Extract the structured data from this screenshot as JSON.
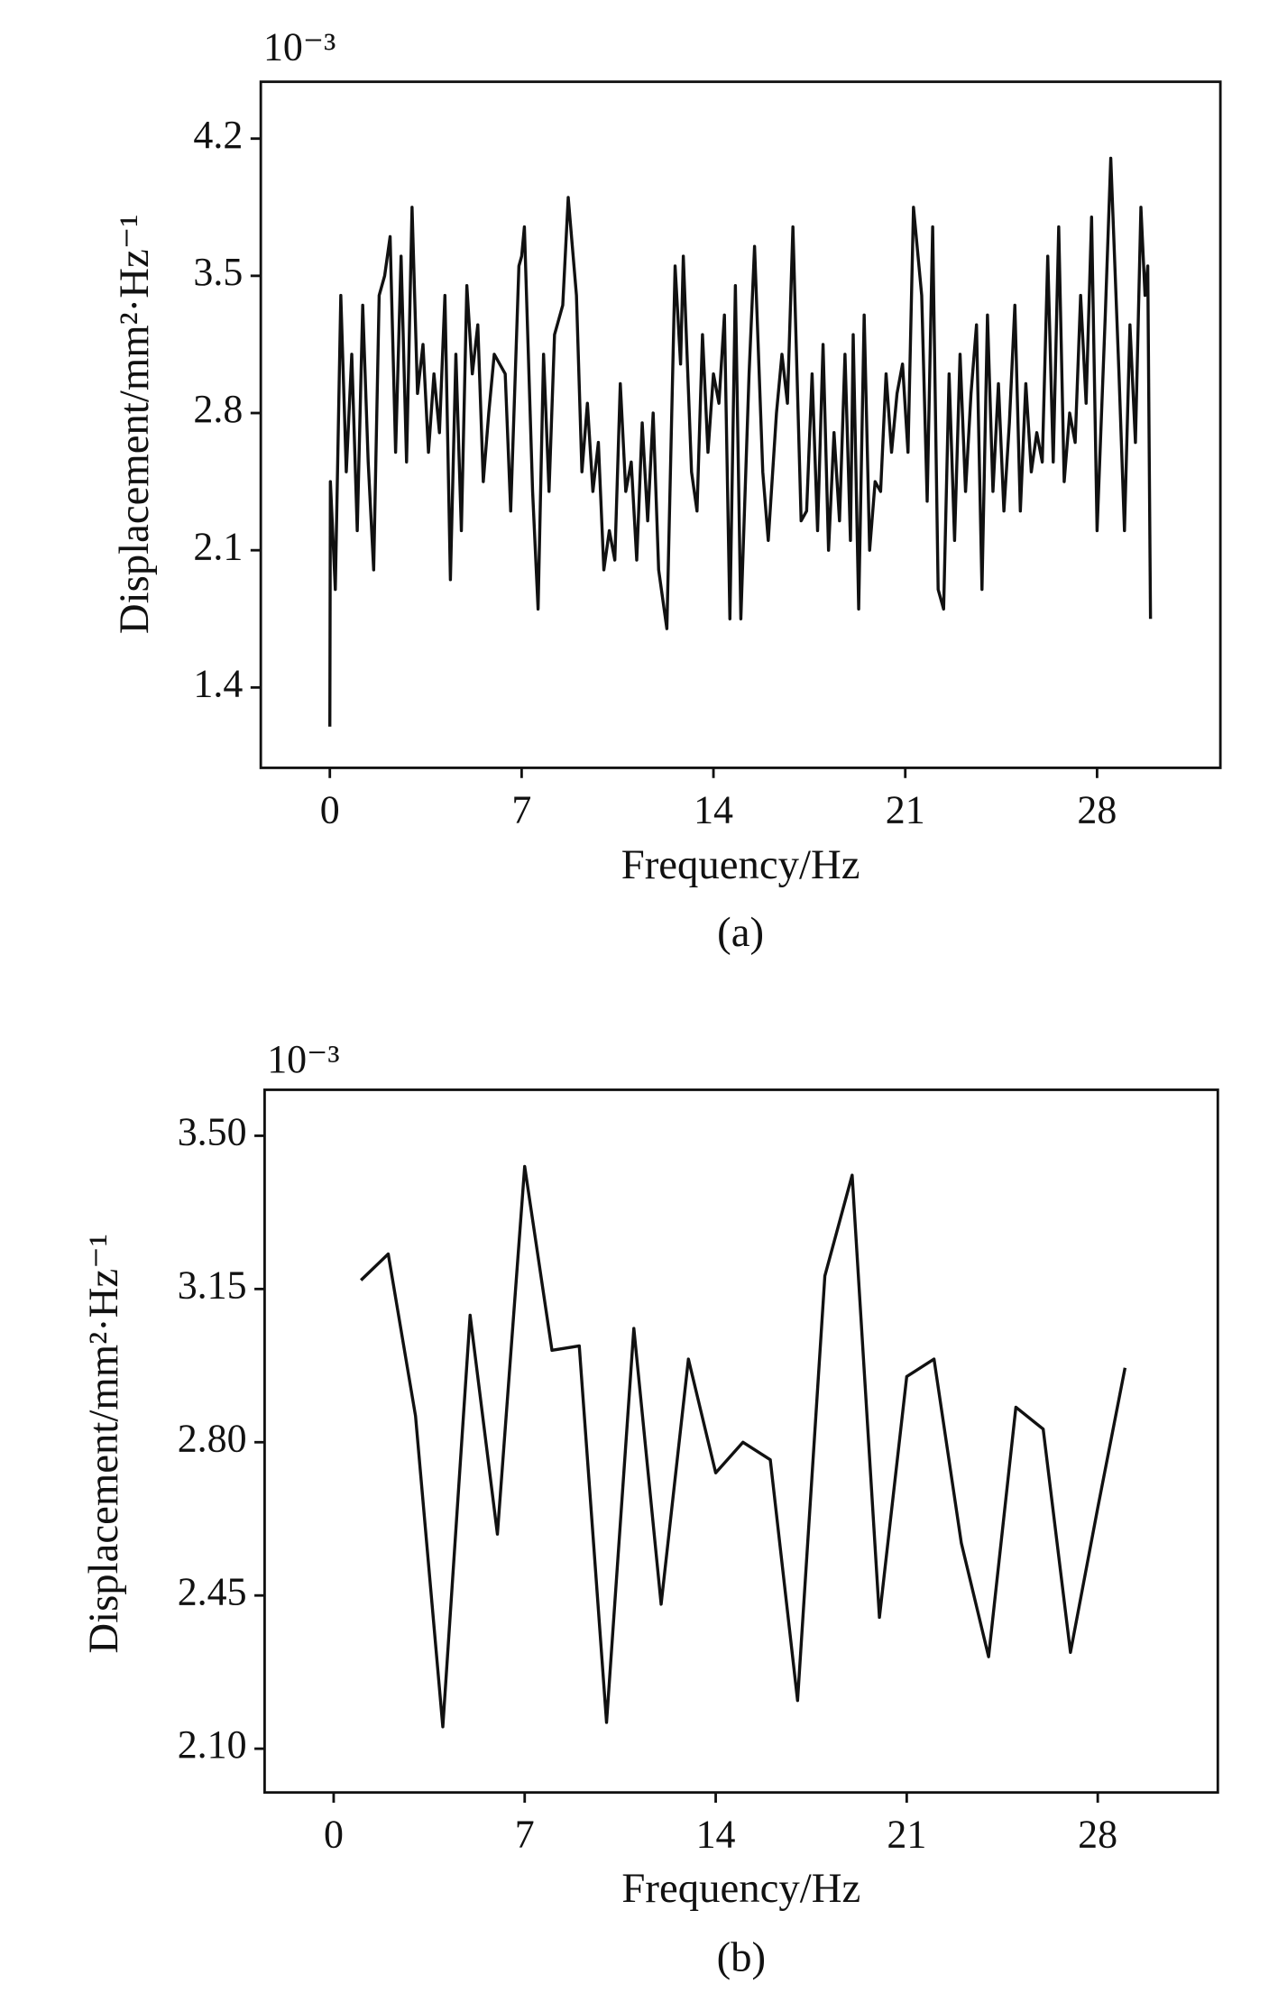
{
  "chart_data": [
    {
      "type": "line",
      "caption": "(a)",
      "exponent": "10⁻³",
      "xlabel": "Frequency/Hz",
      "ylabel": "Displacement/mm²·Hz⁻¹",
      "color": "#111111",
      "x": [
        0,
        0.02,
        0.2,
        0.4,
        0.6,
        0.8,
        1.0,
        1.2,
        1.4,
        1.6,
        1.8,
        2.0,
        2.2,
        2.4,
        2.6,
        2.8,
        3.0,
        3.2,
        3.4,
        3.6,
        3.8,
        4.0,
        4.2,
        4.4,
        4.6,
        4.8,
        5.0,
        5.2,
        5.4,
        5.6,
        5.8,
        6.0,
        6.2,
        6.4,
        6.6,
        6.9,
        7.0,
        7.1,
        7.4,
        7.6,
        7.8,
        8.0,
        8.2,
        8.5,
        8.7,
        9.0,
        9.2,
        9.4,
        9.6,
        9.8,
        10.0,
        10.2,
        10.4,
        10.6,
        10.8,
        11.0,
        11.2,
        11.4,
        11.6,
        11.8,
        12.0,
        12.3,
        12.6,
        12.8,
        12.9,
        13.2,
        13.4,
        13.6,
        13.8,
        14.0,
        14.2,
        14.4,
        14.6,
        14.8,
        15.0,
        15.3,
        15.5,
        15.8,
        16.0,
        16.3,
        16.5,
        16.7,
        16.9,
        17.2,
        17.4,
        17.6,
        17.8,
        18.0,
        18.2,
        18.4,
        18.6,
        18.8,
        19.0,
        19.1,
        19.3,
        19.5,
        19.7,
        19.9,
        20.1,
        20.3,
        20.5,
        20.7,
        20.9,
        21.1,
        21.3,
        21.6,
        21.8,
        22.0,
        22.2,
        22.4,
        22.6,
        22.8,
        23.0,
        23.2,
        23.4,
        23.6,
        23.8,
        24.0,
        24.2,
        24.4,
        24.6,
        24.8,
        25.0,
        25.2,
        25.4,
        25.6,
        25.8,
        26.0,
        26.2,
        26.4,
        26.6,
        26.8,
        27.0,
        27.2,
        27.4,
        27.6,
        27.8,
        28.0,
        28.3,
        28.5,
        28.8,
        29.0,
        29.2,
        29.4,
        29.6,
        29.75,
        29.85,
        29.95
      ],
      "values": [
        1.2,
        2.45,
        1.9,
        3.4,
        2.5,
        3.1,
        2.2,
        3.35,
        2.55,
        2.0,
        3.4,
        3.5,
        3.7,
        2.6,
        3.6,
        2.55,
        3.85,
        2.9,
        3.15,
        2.6,
        3.0,
        2.7,
        3.4,
        1.95,
        3.1,
        2.2,
        3.45,
        3.0,
        3.25,
        2.45,
        2.8,
        3.1,
        3.05,
        3.0,
        2.3,
        3.55,
        3.6,
        3.75,
        2.4,
        1.8,
        3.1,
        2.4,
        3.2,
        3.35,
        3.9,
        3.4,
        2.5,
        2.85,
        2.4,
        2.65,
        2.0,
        2.2,
        2.05,
        2.95,
        2.4,
        2.55,
        2.05,
        2.75,
        2.25,
        2.8,
        2.0,
        1.7,
        3.55,
        3.05,
        3.6,
        2.5,
        2.3,
        3.2,
        2.6,
        3.0,
        2.85,
        3.3,
        1.75,
        3.45,
        1.75,
        3.0,
        3.65,
        2.5,
        2.15,
        2.8,
        3.1,
        2.85,
        3.75,
        2.25,
        2.3,
        3.0,
        2.2,
        3.15,
        2.1,
        2.7,
        2.25,
        3.1,
        2.15,
        3.2,
        1.8,
        3.3,
        2.1,
        2.45,
        2.4,
        3.0,
        2.6,
        2.9,
        3.05,
        2.6,
        3.85,
        3.4,
        2.35,
        3.75,
        1.9,
        1.8,
        3.0,
        2.15,
        3.1,
        2.4,
        2.9,
        3.25,
        1.9,
        3.3,
        2.4,
        2.95,
        2.3,
        2.75,
        3.35,
        2.3,
        2.95,
        2.5,
        2.7,
        2.55,
        3.6,
        2.55,
        3.75,
        2.45,
        2.8,
        2.65,
        3.4,
        2.85,
        3.8,
        2.2,
        3.3,
        4.1,
        3.0,
        2.2,
        3.25,
        2.65,
        3.85,
        3.4,
        3.55,
        1.75
      ],
      "xlim": [
        -2.52,
        32.5
      ],
      "ylim": [
        0.99,
        4.49
      ],
      "xticks": [
        0,
        7,
        14,
        21,
        28
      ],
      "yticks": [
        1.4,
        2.1,
        2.8,
        3.5,
        4.2
      ]
    },
    {
      "type": "line",
      "caption": "(b)",
      "exponent": "10⁻³",
      "xlabel": "Frequency/Hz",
      "ylabel": "Displacement/mm²·Hz⁻¹",
      "color": "#111111",
      "x": [
        1,
        2,
        3,
        4,
        5,
        6,
        7,
        8,
        9,
        10,
        11,
        12,
        13,
        14,
        15,
        16,
        17,
        18,
        19,
        20,
        21,
        22,
        23,
        24,
        25,
        26,
        27,
        28,
        29
      ],
      "values": [
        3.17,
        3.23,
        2.86,
        2.15,
        3.09,
        2.59,
        3.43,
        3.01,
        3.02,
        2.16,
        3.06,
        2.43,
        2.99,
        2.73,
        2.8,
        2.76,
        2.21,
        3.18,
        3.41,
        2.4,
        2.95,
        2.99,
        2.57,
        2.31,
        2.88,
        2.83,
        2.32,
        2.65,
        2.97
      ],
      "xlim": [
        -2.53,
        32.4
      ],
      "ylim": [
        2.0,
        3.605
      ],
      "xticks": [
        0,
        7,
        14,
        21,
        28
      ],
      "yticks": [
        {
          "value": 2.1,
          "label": "2.10"
        },
        {
          "value": 2.45,
          "label": "2.45"
        },
        {
          "value": 2.8,
          "label": "2.80"
        },
        {
          "value": 3.15,
          "label": "3.15"
        },
        {
          "value": 3.5,
          "label": "3.50"
        }
      ]
    }
  ]
}
